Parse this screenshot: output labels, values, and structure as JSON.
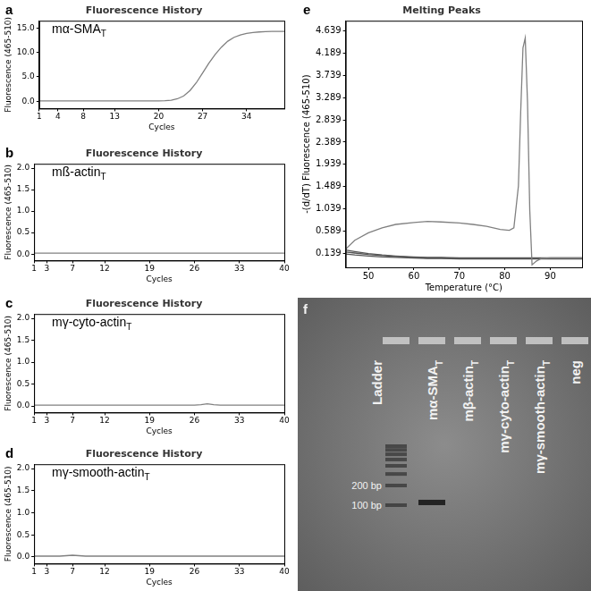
{
  "chart_data": [
    {
      "type": "line",
      "panel": "a",
      "label": {
        "text": "mα-SMA",
        "subscript": "T"
      },
      "title": "Fluorescence History",
      "x_label": "Cycles",
      "y_label": "Fluorescence (465-510)",
      "x": [
        1,
        2,
        3,
        4,
        5,
        6,
        7,
        8,
        9,
        10,
        11,
        12,
        13,
        14,
        15,
        16,
        17,
        18,
        19,
        20,
        21,
        22,
        23,
        24,
        25,
        26,
        27,
        28,
        29,
        30,
        31,
        32,
        33,
        34,
        35,
        36,
        37,
        38,
        39,
        40
      ],
      "series": [
        {
          "color": "#808080",
          "values": [
            0.05,
            0.05,
            0.05,
            0.05,
            0.05,
            0.05,
            0.05,
            0.05,
            0.05,
            0.05,
            0.05,
            0.05,
            0.05,
            0.05,
            0.05,
            0.05,
            0.05,
            0.05,
            0.05,
            0.05,
            0.1,
            0.2,
            0.5,
            1.1,
            2.2,
            3.8,
            5.8,
            7.8,
            9.6,
            11.1,
            12.3,
            13.1,
            13.6,
            13.9,
            14.1,
            14.2,
            14.25,
            14.3,
            14.3,
            14.3
          ]
        }
      ],
      "xlim": [
        1,
        40
      ],
      "xticks": [
        1,
        4,
        8,
        13,
        20,
        27,
        34
      ],
      "ylim": [
        -1.5,
        16.5
      ],
      "yticks": [
        {
          "value": 0,
          "label": "0.0"
        },
        {
          "value": 5,
          "label": "5.0"
        },
        {
          "value": 10,
          "label": "10.0"
        },
        {
          "value": 15,
          "label": "15.0"
        }
      ],
      "grid": false
    },
    {
      "type": "line",
      "panel": "b",
      "label": {
        "text": "mß-actin",
        "subscript": "T"
      },
      "title": "Fluorescence History",
      "x_label": "Cycles",
      "y_label": "Fluorescence (465-510)",
      "x": [
        1,
        2,
        3,
        4,
        5,
        6,
        7,
        8,
        9,
        10,
        11,
        12,
        13,
        14,
        15,
        16,
        17,
        18,
        19,
        20,
        21,
        22,
        23,
        24,
        25,
        26,
        27,
        28,
        29,
        30,
        31,
        32,
        33,
        34,
        35,
        36,
        37,
        38,
        39,
        40
      ],
      "series": [
        {
          "color": "#808080",
          "values": [
            0.02,
            0.02,
            0.02,
            0.02,
            0.02,
            0.02,
            0.02,
            0.02,
            0.02,
            0.02,
            0.02,
            0.02,
            0.02,
            0.02,
            0.02,
            0.02,
            0.02,
            0.02,
            0.02,
            0.02,
            0.02,
            0.02,
            0.02,
            0.02,
            0.02,
            0.02,
            0.02,
            0.02,
            0.02,
            0.02,
            0.02,
            0.02,
            0.02,
            0.02,
            0.02,
            0.02,
            0.02,
            0.02,
            0.02,
            0.02
          ]
        }
      ],
      "xlim": [
        1,
        40
      ],
      "xticks": [
        1,
        3,
        7,
        12,
        19,
        26,
        33,
        40
      ],
      "ylim": [
        -0.15,
        2.1
      ],
      "yticks": [
        {
          "value": 0,
          "label": "0.0"
        },
        {
          "value": 0.5,
          "label": "0.5"
        },
        {
          "value": 1,
          "label": "1.0"
        },
        {
          "value": 1.5,
          "label": "1.5"
        },
        {
          "value": 2,
          "label": "2.0"
        }
      ],
      "grid": false
    },
    {
      "type": "line",
      "panel": "c",
      "label": {
        "text": "mγ-cyto-actin",
        "subscript": "T"
      },
      "title": "Fluorescence History",
      "x_label": "Cycles",
      "y_label": "Fluorescence (465-510)",
      "x": [
        1,
        2,
        3,
        4,
        5,
        6,
        7,
        8,
        9,
        10,
        11,
        12,
        13,
        14,
        15,
        16,
        17,
        18,
        19,
        20,
        21,
        22,
        23,
        24,
        25,
        26,
        27,
        28,
        29,
        30,
        31,
        32,
        33,
        34,
        35,
        36,
        37,
        38,
        39,
        40
      ],
      "series": [
        {
          "color": "#808080",
          "values": [
            0.02,
            0.02,
            0.02,
            0.02,
            0.02,
            0.02,
            0.02,
            0.02,
            0.02,
            0.02,
            0.02,
            0.02,
            0.02,
            0.02,
            0.02,
            0.02,
            0.02,
            0.02,
            0.02,
            0.02,
            0.02,
            0.02,
            0.02,
            0.02,
            0.02,
            0.02,
            0.03,
            0.05,
            0.03,
            0.02,
            0.02,
            0.02,
            0.02,
            0.02,
            0.02,
            0.02,
            0.02,
            0.02,
            0.02,
            0.02
          ]
        }
      ],
      "xlim": [
        1,
        40
      ],
      "xticks": [
        1,
        3,
        7,
        12,
        19,
        26,
        33,
        40
      ],
      "ylim": [
        -0.15,
        2.1
      ],
      "yticks": [
        {
          "value": 0,
          "label": "0.0"
        },
        {
          "value": 0.5,
          "label": "0.5"
        },
        {
          "value": 1,
          "label": "1.0"
        },
        {
          "value": 1.5,
          "label": "1.5"
        },
        {
          "value": 2,
          "label": "2.0"
        }
      ],
      "grid": false
    },
    {
      "type": "line",
      "panel": "d",
      "label": {
        "text": "mγ-smooth-actin",
        "subscript": "T"
      },
      "title": "Fluorescence History",
      "x_label": "Cycles",
      "y_label": "Fluorescence (465-510)",
      "x": [
        1,
        2,
        3,
        4,
        5,
        6,
        7,
        8,
        9,
        10,
        11,
        12,
        13,
        14,
        15,
        16,
        17,
        18,
        19,
        20,
        21,
        22,
        23,
        24,
        25,
        26,
        27,
        28,
        29,
        30,
        31,
        32,
        33,
        34,
        35,
        36,
        37,
        38,
        39,
        40
      ],
      "series": [
        {
          "color": "#808080",
          "values": [
            0.02,
            0.02,
            0.02,
            0.02,
            0.02,
            0.03,
            0.04,
            0.03,
            0.02,
            0.02,
            0.02,
            0.02,
            0.02,
            0.02,
            0.02,
            0.02,
            0.02,
            0.02,
            0.02,
            0.02,
            0.02,
            0.02,
            0.02,
            0.02,
            0.02,
            0.02,
            0.02,
            0.02,
            0.02,
            0.02,
            0.02,
            0.02,
            0.02,
            0.02,
            0.02,
            0.02,
            0.02,
            0.02,
            0.02,
            0.02
          ]
        }
      ],
      "xlim": [
        1,
        40
      ],
      "xticks": [
        1,
        3,
        7,
        12,
        19,
        26,
        33,
        40
      ],
      "ylim": [
        -0.15,
        2.1
      ],
      "yticks": [
        {
          "value": 0,
          "label": "0.0"
        },
        {
          "value": 0.5,
          "label": "0.5"
        },
        {
          "value": 1,
          "label": "1.0"
        },
        {
          "value": 1.5,
          "label": "1.5"
        },
        {
          "value": 2,
          "label": "2.0"
        }
      ],
      "grid": false
    },
    {
      "type": "line",
      "panel": "e",
      "title": "Melting Peaks",
      "x_label": "Temperature (°C)",
      "y_label": "-(d/dT) Fluorescence (465-510)",
      "x": [
        45,
        47,
        50,
        53,
        56,
        60,
        63,
        66,
        70,
        73,
        76,
        79,
        81,
        82,
        83,
        83.5,
        84,
        84.5,
        85,
        85.5,
        86,
        87,
        88,
        90,
        93,
        97
      ],
      "series": [
        {
          "color": "#808080",
          "values": [
            0.22,
            0.4,
            0.55,
            0.65,
            0.72,
            0.76,
            0.78,
            0.77,
            0.75,
            0.72,
            0.68,
            0.62,
            0.6,
            0.65,
            1.5,
            3.0,
            4.3,
            4.5,
            3.2,
            1.0,
            -0.1,
            -0.02,
            0.03,
            0.04,
            0.04,
            0.04
          ]
        },
        {
          "color": "#555555",
          "values": [
            0.2,
            0.17,
            0.13,
            0.1,
            0.08,
            0.06,
            0.05,
            0.05,
            0.04,
            0.04,
            0.04,
            0.04,
            0.04,
            0.04,
            0.04,
            0.04,
            0.04,
            0.04,
            0.04,
            0.04,
            0.04,
            0.04,
            0.04,
            0.04,
            0.04,
            0.04
          ]
        },
        {
          "color": "#555555",
          "values": [
            0.16,
            0.14,
            0.11,
            0.09,
            0.07,
            0.05,
            0.04,
            0.04,
            0.03,
            0.03,
            0.03,
            0.03,
            0.03,
            0.03,
            0.03,
            0.03,
            0.03,
            0.03,
            0.03,
            0.03,
            0.03,
            0.03,
            0.03,
            0.03,
            0.03,
            0.03
          ]
        },
        {
          "color": "#555555",
          "values": [
            0.12,
            0.1,
            0.08,
            0.06,
            0.05,
            0.04,
            0.03,
            0.03,
            0.02,
            0.02,
            0.02,
            0.02,
            0.02,
            0.02,
            0.02,
            0.02,
            0.02,
            0.02,
            0.02,
            0.02,
            0.02,
            0.02,
            0.02,
            0.02,
            0.02,
            0.02
          ]
        }
      ],
      "xlim": [
        45,
        97
      ],
      "xticks": [
        50,
        60,
        70,
        80,
        90
      ],
      "ylim": [
        -0.15,
        4.85
      ],
      "yticks": [
        0.139,
        0.589,
        1.039,
        1.489,
        1.939,
        2.389,
        2.839,
        3.289,
        3.739,
        4.189,
        4.639
      ],
      "grid": false
    }
  ],
  "gel": {
    "panel": "f",
    "lanes": [
      {
        "text": "Ladder",
        "bands_bp": [
          100,
          200,
          300,
          400,
          500,
          600,
          700,
          800
        ]
      },
      {
        "text": "mα-SMA",
        "subscript": "T",
        "bands_bp": [
          110
        ]
      },
      {
        "text": "mβ-actin",
        "subscript": "T",
        "bands_bp": []
      },
      {
        "text": "mγ-cyto-actin",
        "subscript": "T",
        "bands_bp": []
      },
      {
        "text": "mγ-smooth-actin",
        "subscript": "T",
        "bands_bp": []
      },
      {
        "text": "neg",
        "bands_bp": []
      }
    ],
    "marker_labels": [
      {
        "bp": 200,
        "label": "200 bp"
      },
      {
        "bp": 100,
        "label": "100 bp"
      }
    ]
  }
}
